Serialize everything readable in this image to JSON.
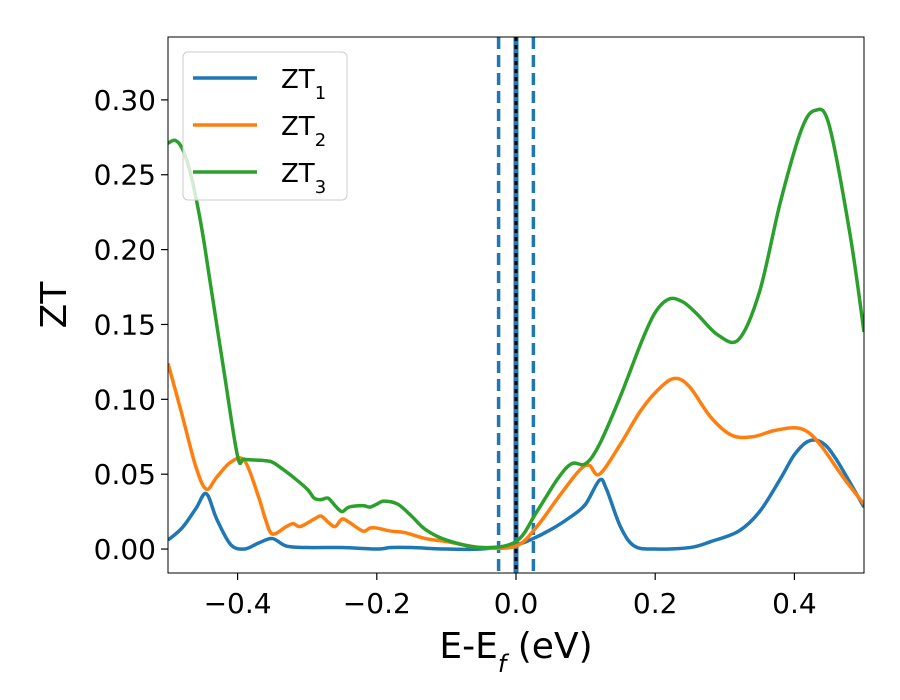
{
  "chart_data": {
    "type": "line",
    "xlabel": {
      "main": "E-E",
      "sub": "f",
      "unit": " (eV)"
    },
    "ylabel": "ZT",
    "xlim": [
      -0.5,
      0.5
    ],
    "ylim": [
      -0.016,
      0.342
    ],
    "xticks": [
      -0.4,
      -0.2,
      0.0,
      0.2,
      0.4
    ],
    "xtick_labels": [
      "−0.4",
      "−0.2",
      "0.0",
      "0.2",
      "0.4"
    ],
    "yticks": [
      0.0,
      0.05,
      0.1,
      0.15,
      0.2,
      0.25,
      0.3
    ],
    "ytick_labels": [
      "0.00",
      "0.05",
      "0.10",
      "0.15",
      "0.20",
      "0.25",
      "0.30"
    ],
    "grid": false,
    "legend": {
      "position": "top-left"
    },
    "vlines": [
      {
        "x": -0.025,
        "style": "dashed",
        "color": "#1f77b4"
      },
      {
        "x": 0.025,
        "style": "dashed",
        "color": "#1f77b4"
      },
      {
        "x": 0.0,
        "style": "solid",
        "color": "#1f77b4"
      },
      {
        "x": 0.0,
        "style": "dotted",
        "color": "#000000"
      }
    ],
    "series": [
      {
        "name": "ZT",
        "sub": "1",
        "color": "#1f77b4",
        "x": [
          -0.5,
          -0.48,
          -0.46,
          -0.445,
          -0.43,
          -0.41,
          -0.39,
          -0.37,
          -0.35,
          -0.33,
          -0.3,
          -0.25,
          -0.2,
          -0.18,
          -0.15,
          -0.1,
          -0.05,
          0.0,
          0.02,
          0.05,
          0.08,
          0.1,
          0.12,
          0.13,
          0.15,
          0.17,
          0.2,
          0.25,
          0.28,
          0.32,
          0.35,
          0.38,
          0.4,
          0.42,
          0.44,
          0.46,
          0.5
        ],
        "y": [
          0.006,
          0.014,
          0.027,
          0.037,
          0.02,
          0.003,
          0.0,
          0.004,
          0.007,
          0.002,
          0.001,
          0.001,
          0.0,
          0.001,
          0.001,
          0.0,
          0.0,
          0.003,
          0.006,
          0.013,
          0.022,
          0.03,
          0.046,
          0.04,
          0.015,
          0.002,
          0.0,
          0.001,
          0.005,
          0.012,
          0.025,
          0.047,
          0.063,
          0.072,
          0.071,
          0.06,
          0.028
        ]
      },
      {
        "name": "ZT",
        "sub": "2",
        "color": "#ff7f0e",
        "x": [
          -0.5,
          -0.48,
          -0.46,
          -0.445,
          -0.43,
          -0.41,
          -0.39,
          -0.37,
          -0.36,
          -0.35,
          -0.33,
          -0.32,
          -0.31,
          -0.29,
          -0.28,
          -0.27,
          -0.26,
          -0.25,
          -0.24,
          -0.22,
          -0.21,
          -0.2,
          -0.18,
          -0.16,
          -0.13,
          -0.1,
          -0.05,
          0.0,
          0.03,
          0.06,
          0.09,
          0.105,
          0.12,
          0.15,
          0.18,
          0.21,
          0.23,
          0.25,
          0.28,
          0.31,
          0.34,
          0.37,
          0.4,
          0.42,
          0.44,
          0.47,
          0.5
        ],
        "y": [
          0.124,
          0.09,
          0.055,
          0.04,
          0.048,
          0.058,
          0.059,
          0.035,
          0.02,
          0.01,
          0.015,
          0.017,
          0.015,
          0.02,
          0.022,
          0.018,
          0.015,
          0.02,
          0.018,
          0.012,
          0.014,
          0.014,
          0.012,
          0.011,
          0.007,
          0.005,
          0.001,
          0.002,
          0.015,
          0.034,
          0.052,
          0.056,
          0.05,
          0.07,
          0.093,
          0.109,
          0.114,
          0.108,
          0.088,
          0.076,
          0.075,
          0.079,
          0.081,
          0.078,
          0.068,
          0.048,
          0.03
        ]
      },
      {
        "name": "ZT",
        "sub": "3",
        "color": "#2ca02c",
        "x": [
          -0.5,
          -0.49,
          -0.48,
          -0.47,
          -0.46,
          -0.45,
          -0.44,
          -0.42,
          -0.4,
          -0.39,
          -0.36,
          -0.35,
          -0.34,
          -0.32,
          -0.3,
          -0.29,
          -0.28,
          -0.27,
          -0.26,
          -0.25,
          -0.24,
          -0.22,
          -0.21,
          -0.2,
          -0.19,
          -0.17,
          -0.15,
          -0.13,
          -0.1,
          -0.05,
          0.0,
          0.03,
          0.06,
          0.08,
          0.1,
          0.12,
          0.15,
          0.18,
          0.2,
          0.22,
          0.24,
          0.26,
          0.29,
          0.32,
          0.35,
          0.38,
          0.41,
          0.43,
          0.45,
          0.48,
          0.5
        ],
        "y": [
          0.271,
          0.273,
          0.268,
          0.255,
          0.235,
          0.21,
          0.18,
          0.12,
          0.062,
          0.06,
          0.059,
          0.058,
          0.055,
          0.048,
          0.04,
          0.034,
          0.033,
          0.034,
          0.029,
          0.025,
          0.028,
          0.029,
          0.028,
          0.03,
          0.032,
          0.03,
          0.022,
          0.013,
          0.006,
          0.001,
          0.005,
          0.025,
          0.047,
          0.057,
          0.057,
          0.07,
          0.102,
          0.138,
          0.158,
          0.167,
          0.165,
          0.157,
          0.143,
          0.14,
          0.172,
          0.232,
          0.28,
          0.293,
          0.283,
          0.21,
          0.145
        ]
      }
    ]
  }
}
